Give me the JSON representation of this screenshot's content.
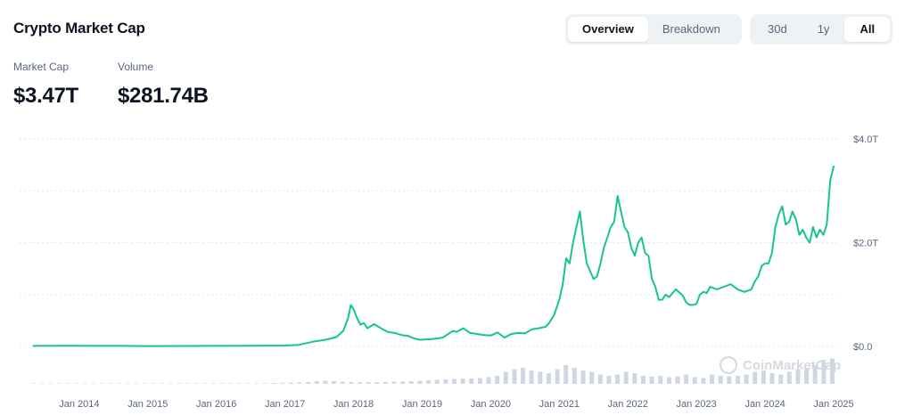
{
  "header": {
    "title": "Crypto Market Cap"
  },
  "view_tabs": [
    {
      "label": "Overview",
      "active": true
    },
    {
      "label": "Breakdown",
      "active": false
    }
  ],
  "range_tabs": [
    {
      "label": "30d",
      "active": false
    },
    {
      "label": "1y",
      "active": false
    },
    {
      "label": "All",
      "active": true
    }
  ],
  "stats": {
    "market_cap_label": "Market Cap",
    "market_cap_value": "$3.47T",
    "volume_label": "Volume",
    "volume_value": "$281.74B"
  },
  "watermark": "CoinMarketCap",
  "colors": {
    "line": "#16c784",
    "volume": "#cfd6e4",
    "grid": "#e3e6ea"
  },
  "chart_data": {
    "type": "line",
    "title": "",
    "xlabel": "",
    "ylabel": "",
    "x_ticks": [
      "Jan 2014",
      "Jan 2015",
      "Jan 2016",
      "Jan 2017",
      "Jan 2018",
      "Jan 2019",
      "Jan 2020",
      "Jan 2021",
      "Jan 2022",
      "Jan 2023",
      "Jan 2024",
      "Jan 2025"
    ],
    "y_ticks": [
      "$0.0",
      "$2.0T",
      "$4.0T"
    ],
    "y_tick_values": [
      0,
      2,
      4
    ],
    "ylim": [
      0,
      4
    ],
    "xlim": [
      2013.3,
      2025.0
    ],
    "y_unit": "T USD",
    "grid": true,
    "series": [
      {
        "type": "line",
        "x": [
          2013.33,
          2013.9,
          2014.2,
          2014.6,
          2015.0,
          2015.5,
          2016.0,
          2016.5,
          2017.0,
          2017.2,
          2017.4,
          2017.6,
          2017.75,
          2017.85,
          2017.92,
          2017.96,
          2018.0,
          2018.05,
          2018.1,
          2018.15,
          2018.2,
          2018.3,
          2018.4,
          2018.5,
          2018.6,
          2018.7,
          2018.8,
          2018.87,
          2018.95,
          2019.0,
          2019.15,
          2019.3,
          2019.45,
          2019.5,
          2019.6,
          2019.7,
          2019.8,
          2019.9,
          2020.0,
          2020.1,
          2020.2,
          2020.3,
          2020.4,
          2020.5,
          2020.6,
          2020.7,
          2020.8,
          2020.85,
          2020.92,
          2020.97,
          2021.0,
          2021.05,
          2021.1,
          2021.15,
          2021.2,
          2021.25,
          2021.3,
          2021.35,
          2021.4,
          2021.45,
          2021.5,
          2021.55,
          2021.6,
          2021.65,
          2021.7,
          2021.75,
          2021.8,
          2021.85,
          2021.9,
          2021.95,
          2022.0,
          2022.05,
          2022.1,
          2022.15,
          2022.2,
          2022.25,
          2022.3,
          2022.35,
          2022.4,
          2022.45,
          2022.5,
          2022.55,
          2022.6,
          2022.7,
          2022.8,
          2022.85,
          2022.9,
          2022.95,
          2023.0,
          2023.05,
          2023.1,
          2023.15,
          2023.2,
          2023.3,
          2023.4,
          2023.5,
          2023.6,
          2023.7,
          2023.8,
          2023.85,
          2023.9,
          2023.95,
          2024.0,
          2024.05,
          2024.1,
          2024.15,
          2024.2,
          2024.25,
          2024.3,
          2024.35,
          2024.4,
          2024.45,
          2024.5,
          2024.55,
          2024.6,
          2024.65,
          2024.7,
          2024.75,
          2024.8,
          2024.85,
          2024.9,
          2024.95,
          2025.0
        ],
        "y": [
          0.01,
          0.012,
          0.011,
          0.01,
          0.007,
          0.008,
          0.011,
          0.012,
          0.018,
          0.03,
          0.09,
          0.13,
          0.18,
          0.3,
          0.55,
          0.8,
          0.72,
          0.55,
          0.42,
          0.45,
          0.35,
          0.43,
          0.35,
          0.28,
          0.26,
          0.22,
          0.2,
          0.16,
          0.13,
          0.13,
          0.14,
          0.17,
          0.3,
          0.28,
          0.35,
          0.26,
          0.24,
          0.22,
          0.21,
          0.27,
          0.17,
          0.24,
          0.26,
          0.25,
          0.33,
          0.35,
          0.38,
          0.45,
          0.6,
          0.78,
          0.9,
          1.2,
          1.7,
          1.6,
          2.0,
          2.3,
          2.6,
          2.05,
          1.6,
          1.45,
          1.3,
          1.35,
          1.6,
          1.9,
          2.1,
          2.3,
          2.4,
          2.9,
          2.6,
          2.3,
          2.2,
          1.9,
          1.75,
          2.0,
          2.1,
          1.8,
          1.75,
          1.3,
          1.15,
          0.9,
          0.9,
          1.0,
          0.95,
          1.1,
          0.98,
          0.85,
          0.8,
          0.8,
          0.82,
          1.0,
          1.05,
          1.03,
          1.15,
          1.1,
          1.15,
          1.2,
          1.1,
          1.05,
          1.1,
          1.25,
          1.35,
          1.55,
          1.6,
          1.6,
          1.8,
          2.3,
          2.55,
          2.7,
          2.35,
          2.4,
          2.6,
          2.45,
          2.15,
          2.25,
          2.1,
          2.0,
          2.3,
          2.1,
          2.25,
          2.15,
          2.35,
          3.2,
          3.47
        ]
      }
    ],
    "volume": {
      "note": "small bars at bottom of chart",
      "values": [
        0.01,
        0.01,
        0.01,
        0.01,
        0.01,
        0.01,
        0.01,
        0.01,
        0.01,
        0.01,
        0.01,
        0.01,
        0.01,
        0.01,
        0.01,
        0.01,
        0.01,
        0.02,
        0.02,
        0.02,
        0.02,
        0.02,
        0.02,
        0.02,
        0.02,
        0.02,
        0.02,
        0.02,
        0.03,
        0.04,
        0.04,
        0.05,
        0.07,
        0.1,
        0.12,
        0.1,
        0.08,
        0.07,
        0.06,
        0.06,
        0.06,
        0.07,
        0.08,
        0.09,
        0.1,
        0.11,
        0.13,
        0.15,
        0.17,
        0.18,
        0.19,
        0.2,
        0.22,
        0.25,
        0.3,
        0.45,
        0.55,
        0.6,
        0.5,
        0.45,
        0.4,
        0.55,
        0.7,
        0.6,
        0.5,
        0.45,
        0.35,
        0.3,
        0.35,
        0.45,
        0.4,
        0.3,
        0.28,
        0.3,
        0.25,
        0.28,
        0.35,
        0.25,
        0.22,
        0.35,
        0.3,
        0.28,
        0.3,
        0.35,
        0.45,
        0.5,
        0.4,
        0.35,
        0.45,
        0.55,
        0.6,
        0.7,
        0.9,
        0.95
      ]
    }
  }
}
